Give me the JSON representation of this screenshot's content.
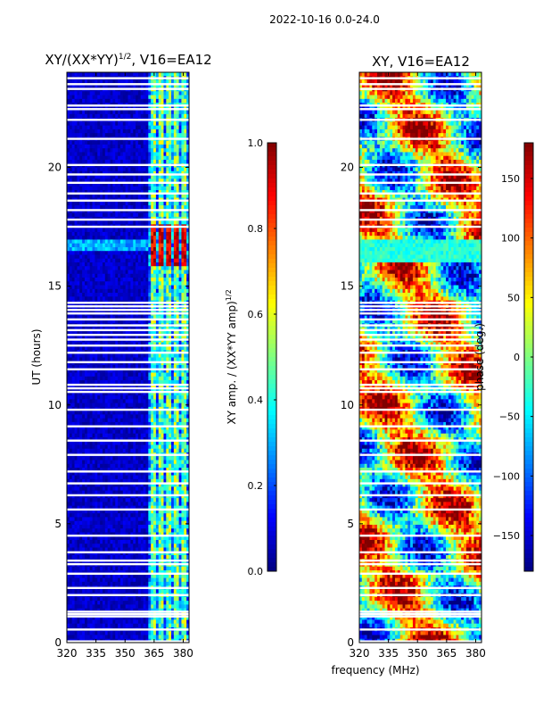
{
  "figure_title": "2022-10-16 0.0-24.0",
  "shared_xlabel": "frequency (MHz)",
  "chart_data": [
    {
      "type": "heatmap",
      "title": "XY/(XX*YY)^1/2, V16=EA12",
      "title_main": "XY/(XX*YY)",
      "title_sup": "1/2",
      "title_tail": ", V16=EA12",
      "xlim": [
        320,
        383
      ],
      "ylim": [
        0,
        24
      ],
      "xticks": [
        320,
        335,
        350,
        365,
        380
      ],
      "yticks": [
        0,
        5,
        10,
        15,
        20
      ],
      "ylabel": "UT (hours)",
      "colormap": "jet",
      "colorbar": {
        "label": "XY amp. / (XX*YY amp)^1/2",
        "label_main": "XY amp. / (XX*YY amp)",
        "label_sup": "1/2",
        "range": [
          0.0,
          1.0
        ],
        "ticks": [
          0.0,
          0.2,
          0.4,
          0.6,
          0.8,
          1.0
        ],
        "tick_labels": [
          "0.0",
          "0.2",
          "0.4",
          "0.6",
          "0.8",
          "1.0"
        ]
      },
      "bright_channels_mhz": [
        364.5,
        368.5,
        372.5,
        377.0,
        380.5
      ],
      "high_amplitude_band_ut": [
        15.8,
        17.6
      ]
    },
    {
      "type": "heatmap",
      "title": "XY, V16=EA12",
      "xlim": [
        320,
        383
      ],
      "ylim": [
        0,
        24
      ],
      "xticks": [
        320,
        335,
        350,
        365,
        380
      ],
      "yticks": [
        0,
        5,
        10,
        15,
        20
      ],
      "ylabel": "",
      "colormap": "jet",
      "colorbar": {
        "label": "phase (deg.)",
        "range": [
          -180,
          180
        ],
        "ticks": [
          -150,
          -100,
          -50,
          0,
          50,
          100,
          150
        ],
        "tick_labels": [
          "−150",
          "−100",
          "−50",
          "0",
          "50",
          "100",
          "150"
        ]
      }
    }
  ],
  "flagged_ut_hours": [
    0.05,
    0.55,
    1.1,
    1.2,
    1.3,
    2.0,
    2.3,
    2.9,
    3.3,
    3.45,
    3.8,
    4.5,
    5.6,
    6.2,
    6.7,
    7.2,
    7.9,
    8.5,
    9.1,
    9.8,
    10.55,
    10.7,
    10.85,
    11.5,
    11.8,
    12.2,
    12.5,
    12.75,
    12.95,
    13.15,
    13.35,
    13.6,
    13.85,
    14.0,
    14.15,
    14.3,
    17.5,
    17.8,
    18.2,
    18.6,
    18.9,
    19.35,
    19.7,
    20.1,
    21.2,
    22.0,
    22.45,
    22.6,
    23.3,
    23.5,
    23.75
  ]
}
